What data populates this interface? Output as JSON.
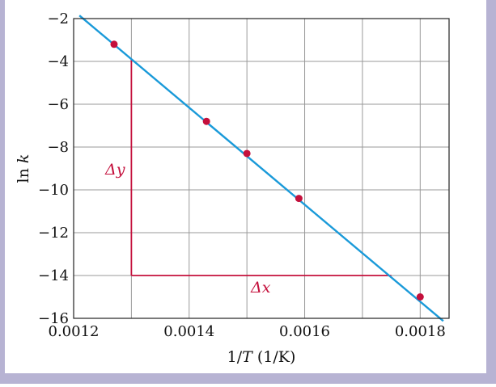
{
  "chart_data": {
    "type": "scatter",
    "xlabel_main": "1/",
    "xlabel_var": "T",
    "xlabel_unit": " (1/K)",
    "ylabel_main": "ln ",
    "ylabel_var": "k",
    "xlim": [
      0.0012,
      0.00185
    ],
    "ylim": [
      -16,
      -2
    ],
    "x_ticks": [
      {
        "value": 0.0012,
        "label": "0.0012"
      },
      {
        "value": 0.0014,
        "label": "0.0014"
      },
      {
        "value": 0.0016,
        "label": "0.0016"
      },
      {
        "value": 0.0018,
        "label": "0.0018"
      }
    ],
    "y_ticks": [
      {
        "value": -2,
        "label": "−2"
      },
      {
        "value": -4,
        "label": "−4"
      },
      {
        "value": -6,
        "label": "−6"
      },
      {
        "value": -8,
        "label": "−8"
      },
      {
        "value": -10,
        "label": "−10"
      },
      {
        "value": -12,
        "label": "−12"
      },
      {
        "value": -14,
        "label": "−14"
      },
      {
        "value": -16,
        "label": "−16"
      }
    ],
    "grid": true,
    "points": [
      {
        "x": 0.00127,
        "y": -3.2
      },
      {
        "x": 0.00143,
        "y": -6.8
      },
      {
        "x": 0.0015,
        "y": -8.3
      },
      {
        "x": 0.00159,
        "y": -10.4
      },
      {
        "x": 0.0018,
        "y": -15.0
      }
    ],
    "fit_line": {
      "x_start": 0.00121,
      "x_end": 0.00184,
      "slope": -22650,
      "intercept": 25.55
    },
    "delta_triangle": {
      "x1": 0.0013,
      "x2": 0.00175,
      "y_top": -3.9,
      "y_bottom": -14
    },
    "delta_y_label": "Δy",
    "delta_x_label": "Δx",
    "colors": {
      "frame": "#b7b3d3",
      "grid": "#999999",
      "line": "#1a9ad9",
      "points": "#c4103c",
      "triangle": "#c4103c",
      "annotation": "#c4103c"
    }
  }
}
